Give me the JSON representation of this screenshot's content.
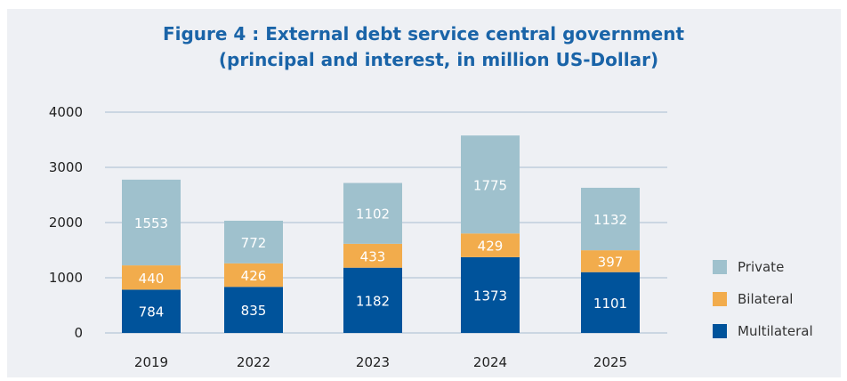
{
  "title_lines": [
    "Figure 4 : External debt service central government",
    "(principal and interest, in million US-Dollar)"
  ],
  "colors": {
    "multilateral": "#00539b",
    "bilateral": "#f2ac4c",
    "private": "#9fc1cd",
    "grid": "#a8bcd0",
    "title": "#1a64a8",
    "panel_background": "#eef0f4"
  },
  "chart_data": {
    "type": "bar",
    "stacked": true,
    "title": "Figure 4 : External debt service central government (principal and interest, in million US-Dollar)",
    "categories": [
      "2019",
      "2022",
      "2023",
      "2024",
      "2025"
    ],
    "series": [
      {
        "name": "Multilateral",
        "values": [
          784,
          835,
          1182,
          1373,
          1101
        ]
      },
      {
        "name": "Bilateral",
        "values": [
          440,
          426,
          433,
          429,
          397
        ]
      },
      {
        "name": "Private",
        "values": [
          1553,
          772,
          1102,
          1775,
          1132
        ]
      }
    ],
    "ylim": [
      0,
      4000
    ],
    "yticks": [
      0,
      1000,
      2000,
      3000,
      4000
    ],
    "grid": true,
    "legend_position": "right",
    "legend_order": [
      "Private",
      "Bilateral",
      "Multilateral"
    ]
  }
}
